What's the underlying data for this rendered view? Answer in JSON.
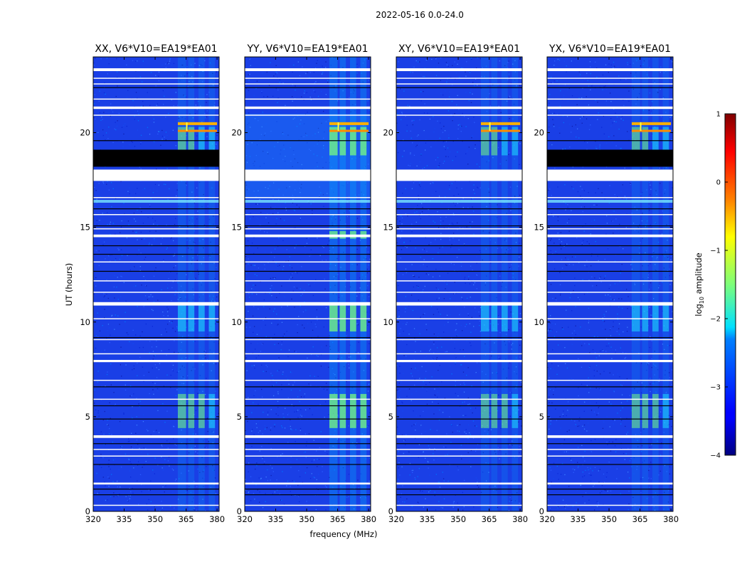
{
  "figure": {
    "suptitle": "2022-05-16 0.0-24.0"
  },
  "chart_data": {
    "type": "heatmap",
    "title": "2022-05-16 0.0-24.0",
    "xlabel": "frequency (MHz)",
    "ylabel": "UT (hours)",
    "xlim": [
      320,
      381
    ],
    "ylim": [
      0,
      24
    ],
    "x_ticks": [
      "320",
      "335",
      "350",
      "365",
      "380"
    ],
    "y_ticks": [
      "0",
      "5",
      "10",
      "15",
      "20"
    ],
    "x_tick_values": [
      320,
      335,
      350,
      365,
      380
    ],
    "y_tick_values": [
      0,
      5,
      10,
      15,
      20
    ],
    "panels": [
      {
        "title": "XX, V6*V10=EA19*EA01",
        "flagged_black": [
          18.2,
          19.1
        ],
        "rfi_strength": 0.55
      },
      {
        "title": "YY, V6*V10=EA19*EA01",
        "flagged_black": null,
        "rfi_strength": 0.85
      },
      {
        "title": "XY, V6*V10=EA19*EA01",
        "flagged_black": null,
        "rfi_strength": 0.5
      },
      {
        "title": "YX, V6*V10=EA19*EA01",
        "flagged_black": [
          18.2,
          19.1
        ],
        "rfi_strength": 0.5
      }
    ],
    "blank_hour_bands": [
      [
        17.45,
        18.05
      ],
      [
        14.48,
        14.62
      ],
      [
        10.87,
        11.05
      ],
      [
        7.88,
        8.0
      ],
      [
        3.88,
        4.02
      ],
      [
        1.42,
        1.52
      ],
      [
        21.25,
        21.38
      ],
      [
        23.25,
        23.4
      ]
    ],
    "rfi_frequency_bands_mhz": [
      [
        361,
        365
      ],
      [
        366,
        369
      ],
      [
        371,
        374
      ],
      [
        376,
        379
      ]
    ],
    "colorbar": {
      "label": "log",
      "label_sub": "10",
      "label_rest": " amplitude",
      "range": [
        -4,
        1
      ],
      "ticks": [
        "1",
        "0",
        "−1",
        "−2",
        "−3",
        "−4"
      ],
      "tick_values": [
        1,
        0,
        -1,
        -2,
        -3,
        -4
      ],
      "colormap": "jet"
    }
  }
}
